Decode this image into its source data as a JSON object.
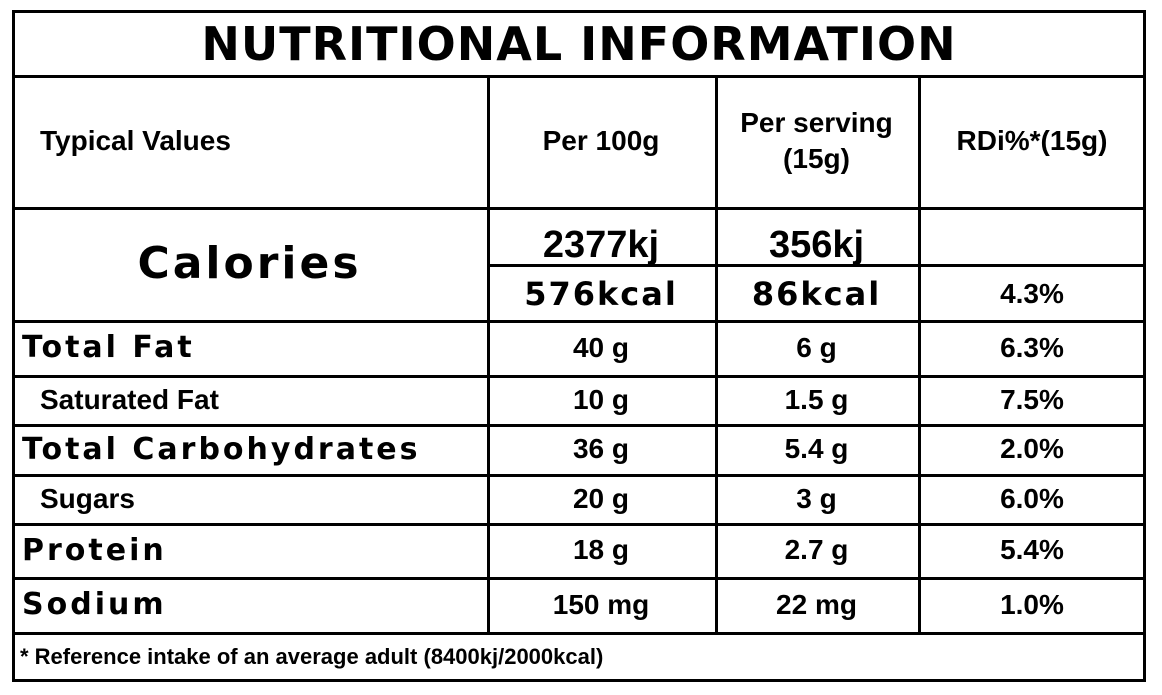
{
  "title": "NUTRITIONAL INFORMATION",
  "header": [
    "Typical Values",
    "Per 100g",
    "Per serving (15g)",
    "RDi%*(15g)"
  ],
  "calories": {
    "label": "Calories",
    "kj": [
      "2377kj",
      "356kj"
    ],
    "kcal": [
      "576kcal",
      "86kcal",
      "4.3%"
    ]
  },
  "rows": [
    [
      "Total Fat",
      "40 g",
      "6 g",
      "6.3%"
    ],
    [
      "Saturated Fat",
      "10 g",
      "1.5 g",
      "7.5%"
    ],
    [
      "Total Carbohydrates",
      "36 g",
      "5.4 g",
      "2.0%"
    ],
    [
      "Sugars",
      "20 g",
      "3 g",
      "6.0%"
    ],
    [
      "Protein",
      "18 g",
      "2.7 g",
      "5.4%"
    ],
    [
      "Sodium",
      "150 mg",
      "22 mg",
      "1.0%"
    ]
  ],
  "footnote": "* Reference intake of an average adult (8400kj/2000kcal)"
}
